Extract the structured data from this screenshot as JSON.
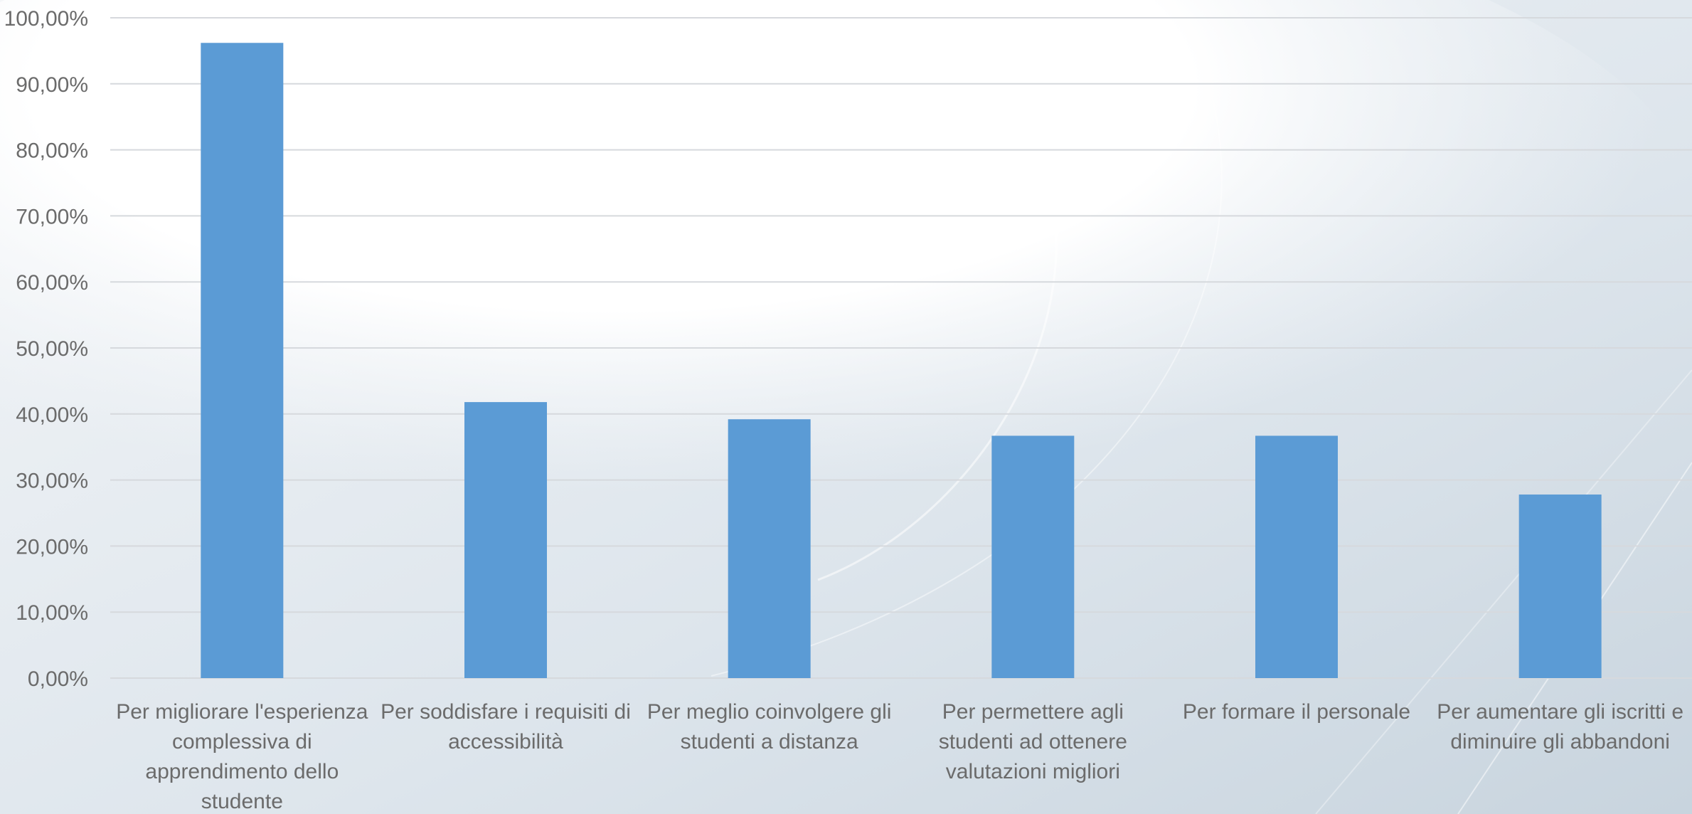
{
  "chart_data": {
    "type": "bar",
    "title": "",
    "xlabel": "",
    "ylabel": "",
    "categories": [
      "Per migliorare l'esperienza complessiva di apprendimento dello studente",
      "Per soddisfare i requisiti di accessibilità",
      "Per meglio coinvolgere gli studenti a distanza",
      "Per permettere agli studenti ad ottenere valutazioni migliori",
      "Per formare il personale",
      "Per aumentare gli iscritti e diminuire gli abbandoni"
    ],
    "values": [
      96.2,
      41.8,
      39.2,
      36.7,
      36.7,
      27.8
    ],
    "ylim": [
      0,
      100
    ],
    "yticks": [
      "0,00%",
      "10,00%",
      "20,00%",
      "30,00%",
      "40,00%",
      "50,00%",
      "60,00%",
      "70,00%",
      "80,00%",
      "90,00%",
      "100,00%"
    ],
    "grid": true,
    "legend": "none",
    "bar_color": "#5b9bd5",
    "grid_color": "#d6d9dd",
    "text_color": "#6b6b6b"
  }
}
